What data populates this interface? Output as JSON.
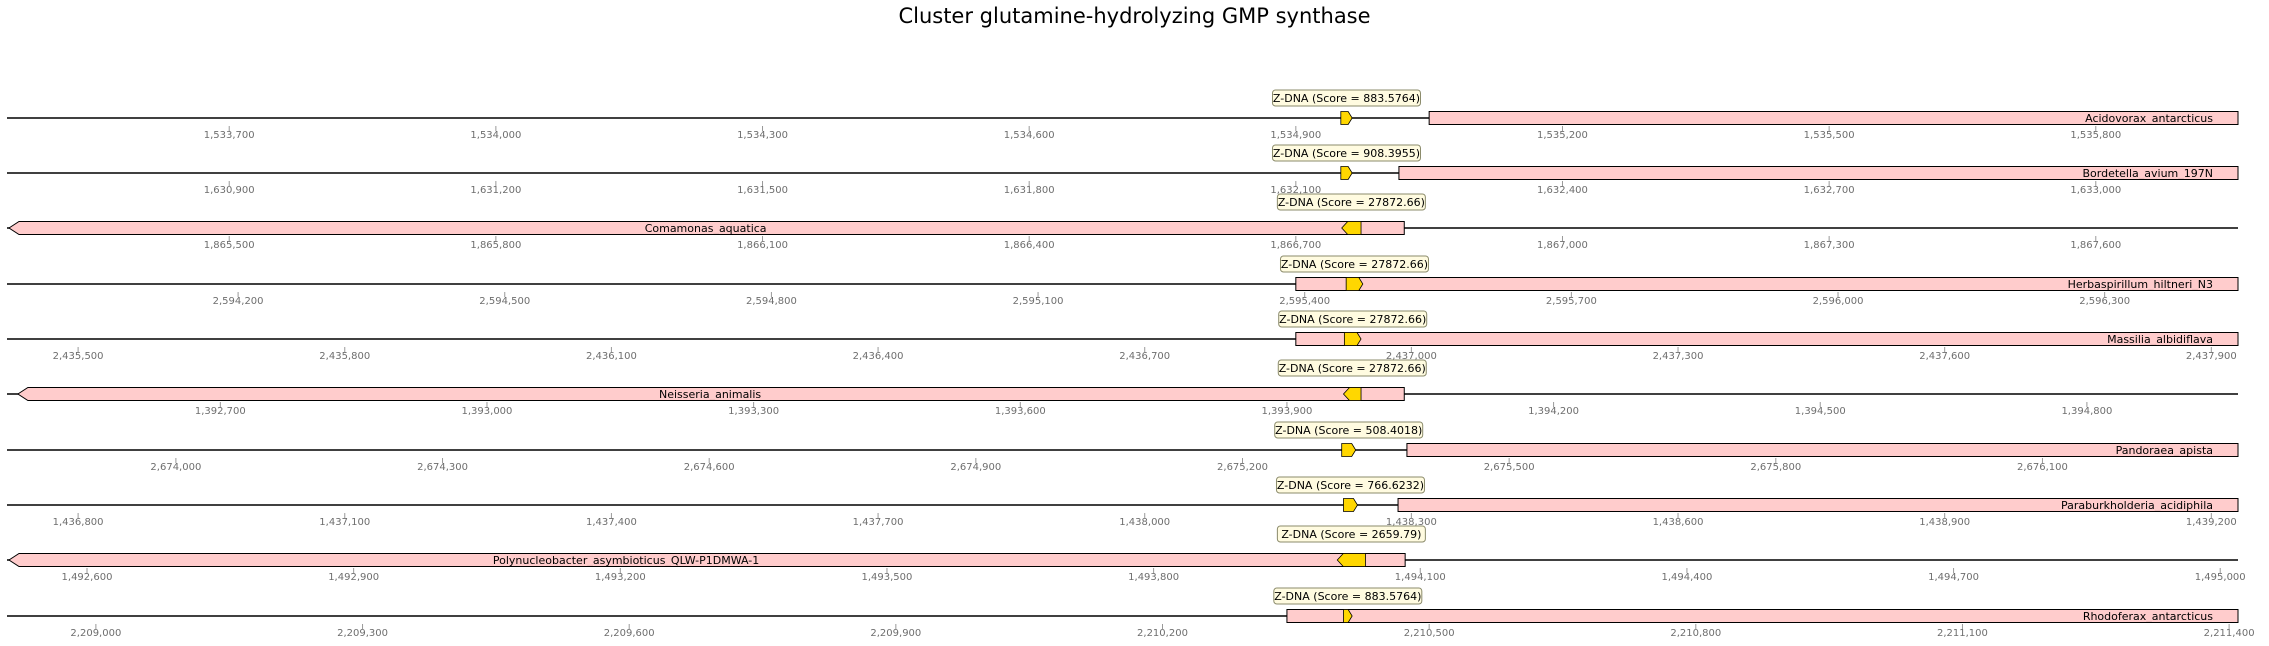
{
  "title": "Cluster glutamine-hydrolyzing GMP synthase",
  "colors": {
    "axis_line": "#000000",
    "gene_fill": "#ffcccc",
    "gene_stroke": "#000000",
    "zdna_fill": "#ffd700",
    "label_box_fill": "#fffbe0",
    "label_box_stroke": "#8b8b6b",
    "tick_text": "#6e6e6e"
  },
  "tracks": [
    {
      "organism": "Acidovorax_antarcticus",
      "zdna_label": "Z-DNA (Score = 883.5764)",
      "gene_strand": "+",
      "gene_side": "right",
      "zdna_dir": "right",
      "ticks": [
        "1,533,700",
        "1,534,000",
        "1,534,300",
        "1,534,600",
        "1,534,900",
        "1,535,200",
        "1,535,500",
        "1,535,800"
      ],
      "tick_positions": [
        1533700,
        1534000,
        1534300,
        1534600,
        1534900,
        1535200,
        1535500,
        1535800
      ],
      "view_range": [
        1533450,
        1535960
      ],
      "zdna_range": [
        1534954,
        1534960
      ],
      "gene_range": [
        1535050,
        1535960
      ]
    },
    {
      "organism": "Bordetella_avium_197N",
      "zdna_label": "Z-DNA (Score = 908.3955)",
      "gene_strand": "+",
      "gene_side": "right",
      "zdna_dir": "right",
      "ticks": [
        "1,630,900",
        "1,631,200",
        "1,631,500",
        "1,631,800",
        "1,632,100",
        "1,632,400",
        "1,632,700",
        "1,633,000"
      ],
      "tick_positions": [
        1630900,
        1631200,
        1631500,
        1631800,
        1632100,
        1632400,
        1632700,
        1633000
      ],
      "view_range": [
        1630650,
        1633160
      ],
      "zdna_range": [
        1632154,
        1632160
      ],
      "gene_range": [
        1632216,
        1633160
      ]
    },
    {
      "organism": "Comamonas_aquatica",
      "zdna_label": "Z-DNA (Score = 27872.66)",
      "gene_strand": "-",
      "gene_side": "left",
      "zdna_dir": "left",
      "ticks": [
        "1,865,500",
        "1,865,800",
        "1,866,100",
        "1,866,400",
        "1,866,700",
        "1,867,000",
        "1,867,300",
        "1,867,600"
      ],
      "tick_positions": [
        1865500,
        1865800,
        1866100,
        1866400,
        1866700,
        1867000,
        1867300,
        1867600
      ],
      "view_range": [
        1865250,
        1867760
      ],
      "zdna_range": [
        1866755,
        1866770
      ],
      "gene_range": [
        1865250,
        1866822
      ]
    },
    {
      "organism": "Herbaspirillum_hiltneri_N3",
      "zdna_label": "Z-DNA (Score = 27872.66)",
      "gene_strand": "+",
      "gene_side": "right",
      "zdna_dir": "right",
      "ticks": [
        "2,594,200",
        "2,594,500",
        "2,594,800",
        "2,595,100",
        "2,595,400",
        "2,595,700",
        "2,596,000",
        "2,596,300"
      ],
      "tick_positions": [
        2594200,
        2594500,
        2594800,
        2595100,
        2595400,
        2595700,
        2596000,
        2596300
      ],
      "view_range": [
        2593940,
        2596450
      ],
      "zdna_range": [
        2595450,
        2595462
      ],
      "gene_range": [
        2595390,
        2596450
      ]
    },
    {
      "organism": "Massilia_albidiflava",
      "zdna_label": "Z-DNA (Score = 27872.66)",
      "gene_strand": "+",
      "gene_side": "right",
      "zdna_dir": "right",
      "ticks": [
        "2,435,500",
        "2,435,800",
        "2,436,100",
        "2,436,400",
        "2,436,700",
        "2,437,000",
        "2,437,300",
        "2,437,600",
        "2,437,900"
      ],
      "tick_positions": [
        2435500,
        2435800,
        2436100,
        2436400,
        2436700,
        2437000,
        2437300,
        2437600,
        2437900
      ],
      "view_range": [
        2435420,
        2437930
      ],
      "zdna_range": [
        2436928,
        2436940
      ],
      "gene_range": [
        2436870,
        2437930
      ]
    },
    {
      "organism": "Neisseria_animalis",
      "zdna_label": "Z-DNA (Score = 27872.66)",
      "gene_strand": "-",
      "gene_side": "left",
      "zdna_dir": "left",
      "ticks": [
        "1,392,700",
        "1,393,000",
        "1,393,300",
        "1,393,600",
        "1,393,900",
        "1,394,200",
        "1,394,500",
        "1,394,800"
      ],
      "tick_positions": [
        1392700,
        1393000,
        1393300,
        1393600,
        1393900,
        1394200,
        1394500,
        1394800
      ],
      "view_range": [
        1392460,
        1394970
      ],
      "zdna_range": [
        1393967,
        1393980
      ],
      "gene_range": [
        1392470,
        1394032
      ]
    },
    {
      "organism": "Pandoraea_apista",
      "zdna_label": "Z-DNA (Score = 508.4018)",
      "gene_strand": "+",
      "gene_side": "right",
      "zdna_dir": "right",
      "ticks": [
        "2,674,000",
        "2,674,300",
        "2,674,600",
        "2,674,900",
        "2,675,200",
        "2,675,500",
        "2,675,800",
        "2,676,100"
      ],
      "tick_positions": [
        2674000,
        2674300,
        2674600,
        2674900,
        2675200,
        2675500,
        2675800,
        2676100
      ],
      "view_range": [
        2673810,
        2676320
      ],
      "zdna_range": [
        2675315,
        2675324
      ],
      "gene_range": [
        2675385,
        2676320
      ]
    },
    {
      "organism": "Paraburkholderia_acidiphila",
      "zdna_label": "Z-DNA (Score = 766.6232)",
      "gene_strand": "+",
      "gene_side": "right",
      "zdna_dir": "right",
      "ticks": [
        "1,436,800",
        "1,437,100",
        "1,437,400",
        "1,437,700",
        "1,438,000",
        "1,438,300",
        "1,438,600",
        "1,438,900",
        "1,439,200"
      ],
      "tick_positions": [
        1436800,
        1437100,
        1437400,
        1437700,
        1438000,
        1438300,
        1438600,
        1438900,
        1439200
      ],
      "view_range": [
        1436720,
        1439230
      ],
      "zdna_range": [
        1438227,
        1438236
      ],
      "gene_range": [
        1438285,
        1439230
      ]
    },
    {
      "organism": "Polynucleobacter_asymbioticus_QLW-P1DMWA-1",
      "zdna_label": "Z-DNA (Score = 2659.79)",
      "gene_strand": "-",
      "gene_side": "left",
      "zdna_dir": "left",
      "ticks": [
        "1,492,600",
        "1,492,900",
        "1,493,200",
        "1,493,500",
        "1,493,800",
        "1,494,100",
        "1,494,400",
        "1,494,700",
        "1,495,000"
      ],
      "tick_positions": [
        1492600,
        1492900,
        1493200,
        1493500,
        1493800,
        1494100,
        1494400,
        1494700,
        1495000
      ],
      "view_range": [
        1492510,
        1495020
      ],
      "zdna_range": [
        1494010,
        1494035
      ],
      "gene_range": [
        1492510,
        1494083
      ]
    },
    {
      "organism": "Rhodoferax_antarcticus",
      "zdna_label": "Z-DNA (Score = 883.5764)",
      "gene_strand": "+",
      "gene_side": "right",
      "zdna_dir": "right",
      "ticks": [
        "2,209,000",
        "2,209,300",
        "2,209,600",
        "2,209,900",
        "2,210,200",
        "2,210,500",
        "2,210,800",
        "2,211,100",
        "2,211,400"
      ],
      "tick_positions": [
        2209000,
        2209300,
        2209600,
        2209900,
        2210200,
        2210500,
        2210800,
        2211100,
        2211400
      ],
      "view_range": [
        2208900,
        2211410
      ],
      "zdna_range": [
        2210407,
        2210410
      ],
      "gene_range": [
        2210340,
        2211410
      ]
    }
  ]
}
